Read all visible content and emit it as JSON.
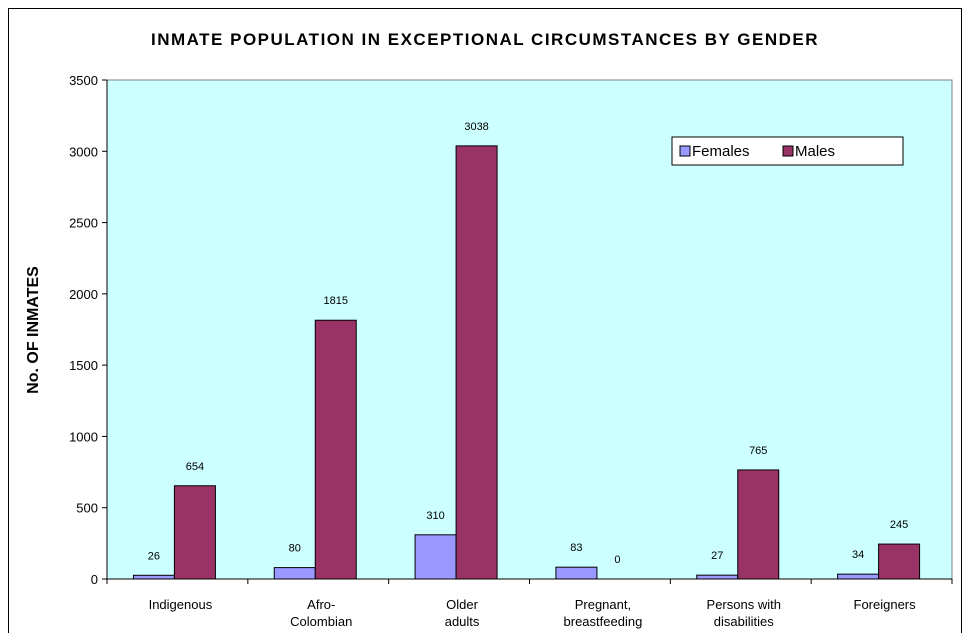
{
  "chart_data": {
    "type": "bar",
    "title": "INMATE POPULATION IN EXCEPTIONAL CIRCUMSTANCES BY GENDER",
    "y_label": "No. OF INMATES",
    "categories": [
      "Indigenous",
      "Afro-\nColombian",
      "Older\nadults",
      "Pregnant,\nbreastfeeding",
      "Persons with\ndisabilities",
      "Foreigners"
    ],
    "series": [
      {
        "name": "Females",
        "color": "#9999ff",
        "values": [
          26,
          80,
          310,
          83,
          27,
          34
        ]
      },
      {
        "name": "Males",
        "color": "#993366",
        "values": [
          654,
          1815,
          3038,
          0,
          765,
          245
        ]
      }
    ],
    "ylim": [
      0,
      3500
    ],
    "yticks": [
      0,
      500,
      1000,
      1500,
      2000,
      2500,
      3000,
      3500
    ],
    "legend": "top-right",
    "plot_background": "#ccffff"
  }
}
